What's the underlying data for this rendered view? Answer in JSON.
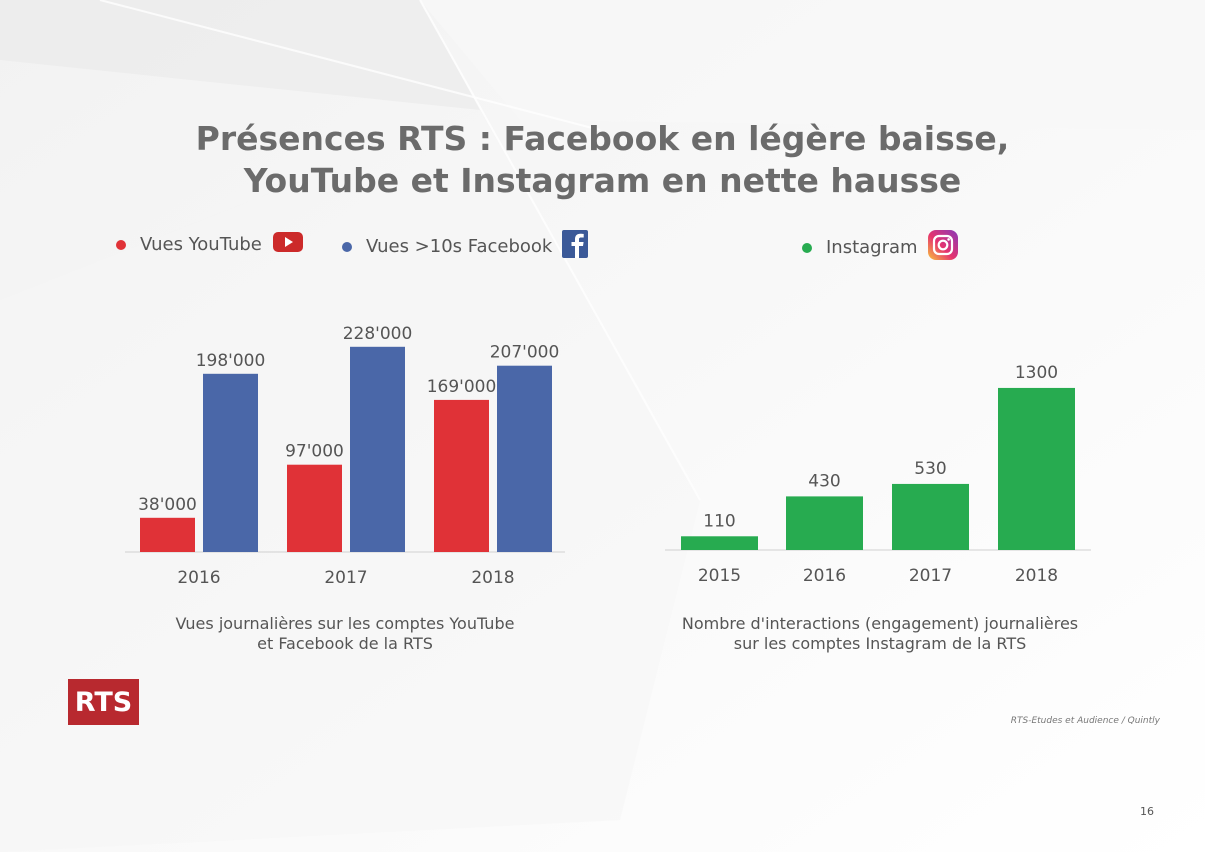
{
  "title_line1": "Présences RTS : Facebook en légère baisse,",
  "title_line2": "YouTube et Instagram en nette hausse",
  "colors": {
    "youtube": "#e03237",
    "facebook": "#4a67a8",
    "instagram": "#27ab50",
    "title": "#6b6b6b",
    "logo": "#b8292f"
  },
  "legend": {
    "youtube_label": "Vues YouTube",
    "facebook_label": "Vues >10s Facebook",
    "instagram_label": "Instagram",
    "youtube_icon": "youtube-icon",
    "facebook_icon": "facebook-icon",
    "instagram_icon": "instagram-icon"
  },
  "chart_data": [
    {
      "type": "bar",
      "categories": [
        "2016",
        "2017",
        "2018"
      ],
      "series": [
        {
          "name": "Vues YouTube",
          "values": [
            38000,
            97000,
            169000
          ],
          "labels": [
            "38'000",
            "97'000",
            "169'000"
          ]
        },
        {
          "name": "Vues >10s Facebook",
          "values": [
            198000,
            228000,
            207000
          ],
          "labels": [
            "198'000",
            "228'000",
            "207'000"
          ]
        }
      ],
      "caption_line1": "Vues journalières sur les comptes YouTube",
      "caption_line2": "et Facebook de la RTS",
      "ylim": [
        0,
        250000
      ],
      "grid": false
    },
    {
      "type": "bar",
      "categories": [
        "2015",
        "2016",
        "2017",
        "2018"
      ],
      "series": [
        {
          "name": "Instagram",
          "values": [
            110,
            430,
            530,
            1300
          ],
          "labels": [
            "110",
            "430",
            "530",
            "1300"
          ]
        }
      ],
      "caption_line1": "Nombre d'interactions (engagement) journalières",
      "caption_line2": "sur les comptes Instagram de la RTS",
      "ylim": [
        0,
        1500
      ],
      "grid": false
    }
  ],
  "logo_text": "RTS",
  "source": "RTS-Etudes et Audience / Quintly",
  "page_number": "16"
}
